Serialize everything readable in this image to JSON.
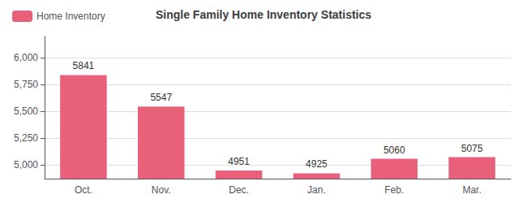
{
  "chart_data": {
    "type": "bar",
    "title": "Single Family Home Inventory Statistics",
    "categories": [
      "Oct.",
      "Nov.",
      "Dec.",
      "Jan.",
      "Feb.",
      "Mar."
    ],
    "series": [
      {
        "name": "Home Inventory",
        "color": "#E8607A",
        "values": [
          5841,
          5547,
          4951,
          4925,
          5060,
          5075
        ]
      }
    ],
    "ylim": [
      4875,
      6200
    ],
    "yticks": [
      5000,
      5250,
      5500,
      5750,
      6000
    ],
    "grid": true,
    "legend": "upper left",
    "data_labels": true
  }
}
